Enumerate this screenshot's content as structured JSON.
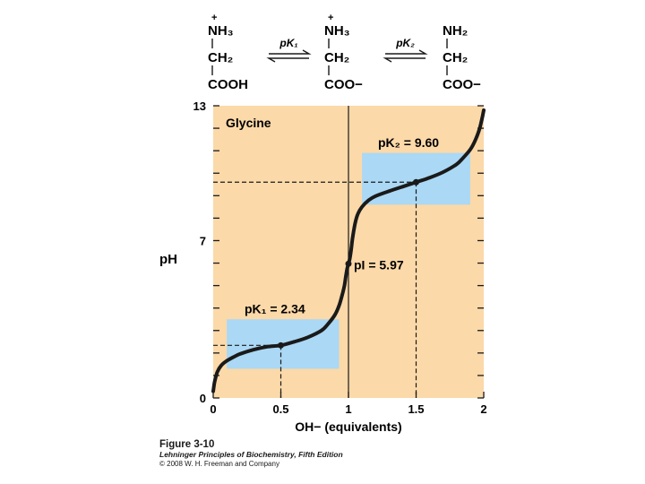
{
  "structures": [
    {
      "top": "N̅H₃",
      "top_charge": "+",
      "mid": "CH₂",
      "bottom": "COOH"
    },
    {
      "top": "NH₃",
      "top_charge": "+",
      "mid": "CH₂",
      "bottom": "COO−"
    },
    {
      "top": "NH₂",
      "top_charge": "",
      "mid": "CH₂",
      "bottom": "COO−"
    }
  ],
  "equilibria": [
    "pK₁",
    "pK₂"
  ],
  "chart_data": {
    "type": "line",
    "title": "Glycine",
    "xlabel": "OH−  (equivalents)",
    "ylabel": "pH",
    "xlim": [
      0,
      2
    ],
    "ylim": [
      0,
      13
    ],
    "x_ticks": [
      "0",
      "0.5",
      "1",
      "1.5",
      "2"
    ],
    "y_ticks": [
      "0",
      "7",
      "13"
    ],
    "curve": {
      "x": [
        0.0,
        0.01,
        0.03,
        0.06,
        0.1,
        0.15,
        0.2,
        0.3,
        0.4,
        0.5,
        0.6,
        0.7,
        0.8,
        0.85,
        0.9,
        0.93,
        0.95,
        0.97,
        0.98,
        0.99,
        1.0,
        1.01,
        1.02,
        1.03,
        1.05,
        1.07,
        1.1,
        1.15,
        1.2,
        1.3,
        1.4,
        1.5,
        1.6,
        1.7,
        1.8,
        1.85,
        1.9,
        1.94,
        1.97,
        1.99,
        2.0
      ],
      "y": [
        0.3,
        0.7,
        1.15,
        1.45,
        1.65,
        1.82,
        1.96,
        2.15,
        2.28,
        2.34,
        2.5,
        2.7,
        3.0,
        3.3,
        3.7,
        4.1,
        4.5,
        5.0,
        5.4,
        5.75,
        5.97,
        6.2,
        6.6,
        7.1,
        7.8,
        8.2,
        8.5,
        8.8,
        8.98,
        9.2,
        9.4,
        9.6,
        9.8,
        10.05,
        10.4,
        10.7,
        11.05,
        11.5,
        12.0,
        12.5,
        12.8
      ]
    },
    "buffer_regions": [
      {
        "x": [
          0.1,
          0.93
        ],
        "y": [
          1.3,
          3.5
        ]
      },
      {
        "x": [
          1.1,
          1.9
        ],
        "y": [
          8.6,
          10.9
        ]
      }
    ],
    "key_points": [
      {
        "x": 0.5,
        "y": 2.34,
        "label": "pK₁ = 2.34"
      },
      {
        "x": 1.0,
        "y": 5.97,
        "label": "pI = 5.97"
      },
      {
        "x": 1.5,
        "y": 9.6,
        "label": "pK₂ = 9.60"
      }
    ],
    "colors": {
      "background": "#fbd9a9",
      "buffer": "#aad8f5",
      "curve": "#1a1a1a"
    }
  },
  "caption": {
    "figure": "Figure 3-10",
    "book": "Lehninger Principles of Biochemistry, Fifth Edition",
    "copyright": "© 2008 W. H. Freeman and Company"
  }
}
